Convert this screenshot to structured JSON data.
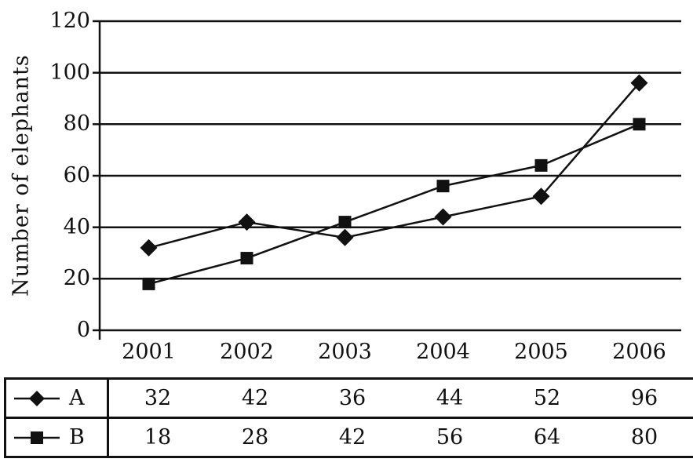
{
  "figure": {
    "background": "#ffffff",
    "ink": "#111111"
  },
  "chart_data": {
    "type": "line",
    "title": "",
    "xlabel": "",
    "ylabel": "Number of elephants",
    "categories": [
      "2001",
      "2002",
      "2003",
      "2004",
      "2005",
      "2006"
    ],
    "series": [
      {
        "name": "A",
        "marker": "diamond",
        "values": [
          32,
          42,
          36,
          44,
          52,
          96
        ]
      },
      {
        "name": "B",
        "marker": "square",
        "values": [
          18,
          28,
          42,
          56,
          64,
          80
        ]
      }
    ],
    "ylim": [
      0,
      120
    ],
    "yticks": [
      0,
      20,
      40,
      60,
      80,
      100,
      120
    ],
    "grid": true,
    "legend_position": "table-left",
    "line_color": "#111111",
    "marker_color": "#111111"
  }
}
